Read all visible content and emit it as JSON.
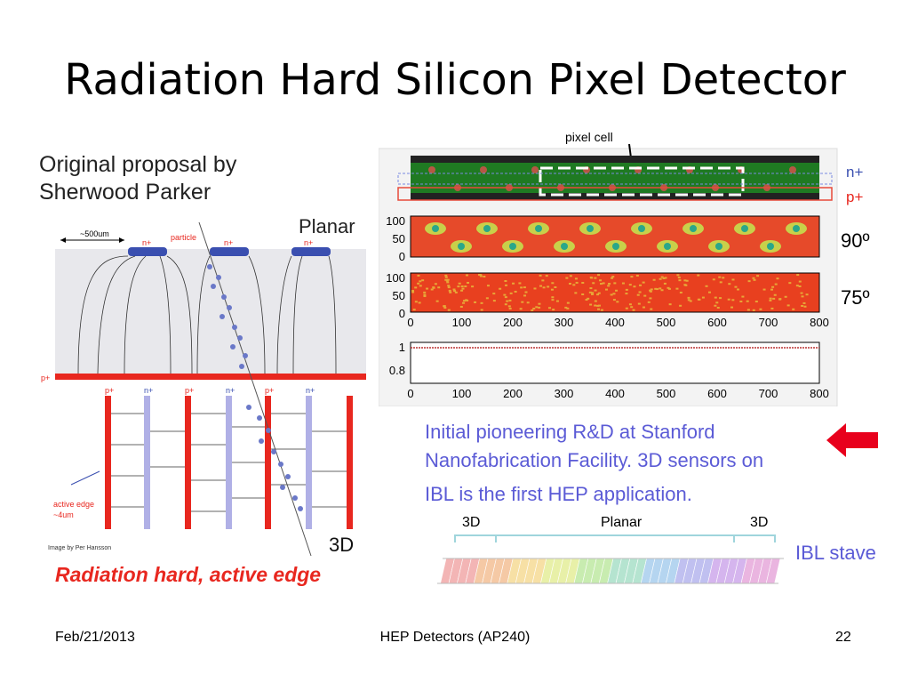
{
  "slide": {
    "title": "Radiation Hard Silicon Pixel Detector",
    "proposal_line1": "Original proposal by",
    "proposal_line2": "Sherwood Parker",
    "planar_label": "Planar",
    "label_3d": "3D",
    "image_credit": "Image by Per Hansson",
    "caption": "Radiation hard, active edge",
    "dim_label": "~500um",
    "particle_label": "particle",
    "n_plus": "n+",
    "p_plus": "p+",
    "active_edge_line1": "active edge",
    "active_edge_line2": "~4um"
  },
  "pixel_panel": {
    "pixel_cell_label": "pixel cell",
    "legend_n": "n+",
    "legend_p": "p+",
    "angle_90": "90º",
    "angle_75": "75º",
    "y_ticks_map": [
      "100",
      "50",
      "0"
    ],
    "x_ticks": [
      "0",
      "100",
      "200",
      "300",
      "400",
      "500",
      "600",
      "700",
      "800"
    ],
    "y_ticks_line": [
      "1",
      "0.8"
    ]
  },
  "description": {
    "line1": "Initial pioneering R&D at Stanford",
    "line2": "Nanofabrication Facility. 3D sensors on",
    "line3": "IBL is the first HEP application."
  },
  "stave": {
    "left_label": "3D",
    "middle_label": "Planar",
    "right_label": "3D",
    "caption": "IBL stave"
  },
  "footer": {
    "date": "Feb/21/2013",
    "course": "HEP Detectors (AP240)",
    "page": "22"
  },
  "colors": {
    "accent_blue": "#5b5bd6",
    "accent_red": "#e8271f",
    "arrow_red": "#e8001c"
  }
}
